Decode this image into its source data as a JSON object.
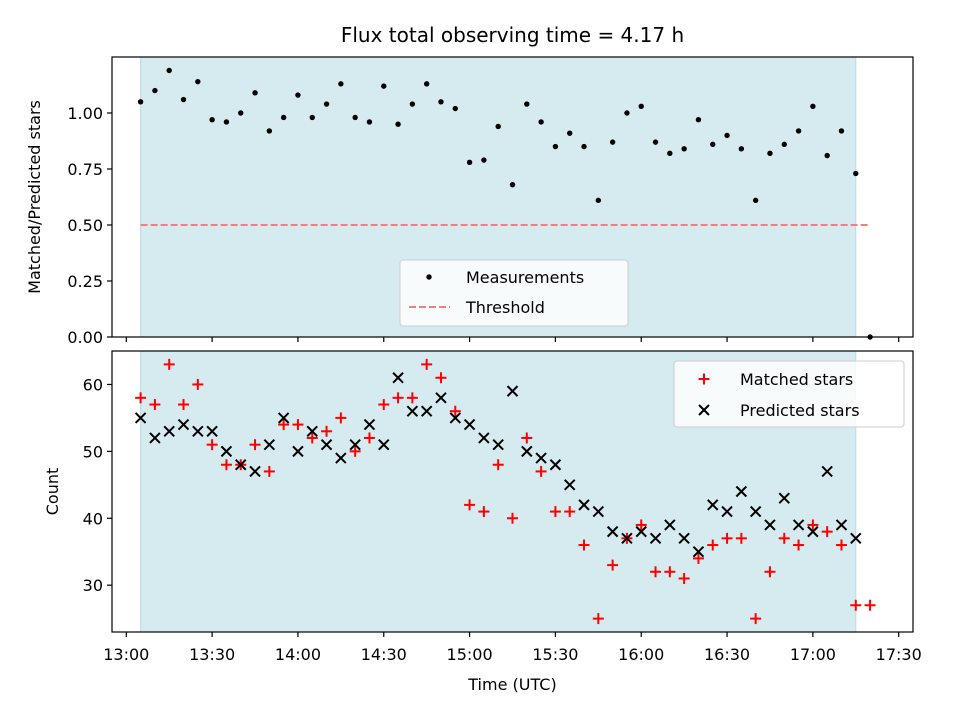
{
  "chart_data": [
    {
      "type": "scatter",
      "title": "Flux total observing time = 4.17 h",
      "xlabel": "",
      "ylabel": "Matched/Predicted stars",
      "ylim": [
        0.0,
        1.25
      ],
      "yticks": [
        "0.00",
        "0.25",
        "0.50",
        "0.75",
        "1.00"
      ],
      "ytick_values": [
        0.0,
        0.25,
        0.5,
        0.75,
        1.0
      ],
      "shaded_span": {
        "start": "13:05",
        "end": "17:15",
        "color": "#d5ebf0"
      },
      "threshold": {
        "value": 0.5,
        "from": "13:05",
        "to": "17:20",
        "color": "#f08080",
        "style": "dashed"
      },
      "legend": {
        "placement": "lower-center",
        "entries": [
          "Measurements",
          "Threshold"
        ]
      },
      "series": [
        {
          "name": "Measurements",
          "marker": "dot",
          "color": "#000000",
          "x": [
            "13:05",
            "13:10",
            "13:15",
            "13:20",
            "13:25",
            "13:30",
            "13:35",
            "13:40",
            "13:45",
            "13:50",
            "13:55",
            "14:00",
            "14:05",
            "14:10",
            "14:15",
            "14:20",
            "14:25",
            "14:30",
            "14:35",
            "14:40",
            "14:45",
            "14:50",
            "14:55",
            "15:00",
            "15:05",
            "15:10",
            "15:15",
            "15:20",
            "15:25",
            "15:30",
            "15:35",
            "15:40",
            "15:45",
            "15:50",
            "15:55",
            "16:00",
            "16:05",
            "16:10",
            "16:15",
            "16:20",
            "16:25",
            "16:30",
            "16:35",
            "16:40",
            "16:45",
            "16:50",
            "16:55",
            "17:00",
            "17:05",
            "17:10",
            "17:15",
            "17:20"
          ],
          "y": [
            1.05,
            1.1,
            1.19,
            1.06,
            1.14,
            0.97,
            0.96,
            1.0,
            1.09,
            0.92,
            0.98,
            1.08,
            0.98,
            1.04,
            1.13,
            0.98,
            0.96,
            1.12,
            0.95,
            1.04,
            1.13,
            1.05,
            1.02,
            0.78,
            0.79,
            0.94,
            0.68,
            1.04,
            0.96,
            0.85,
            0.91,
            0.85,
            0.61,
            0.87,
            1.0,
            1.03,
            0.87,
            0.82,
            0.84,
            0.97,
            0.86,
            0.9,
            0.84,
            0.61,
            0.82,
            0.86,
            0.92,
            1.03,
            0.81,
            0.92,
            0.73,
            0.0
          ]
        }
      ]
    },
    {
      "type": "scatter",
      "title": "",
      "xlabel": "Time (UTC)",
      "ylabel": "Count",
      "ylim": [
        23,
        65
      ],
      "yticks": [
        "30",
        "40",
        "50",
        "60"
      ],
      "ytick_values": [
        30,
        40,
        50,
        60
      ],
      "xticks": [
        "13:00",
        "13:30",
        "14:00",
        "14:30",
        "15:00",
        "15:30",
        "16:00",
        "16:30",
        "17:00",
        "17:30"
      ],
      "xlim": [
        "12:55",
        "17:35"
      ],
      "shaded_span": {
        "start": "13:05",
        "end": "17:15",
        "color": "#d5ebf0"
      },
      "legend": {
        "placement": "upper-right",
        "entries": [
          "Matched stars",
          "Predicted stars"
        ]
      },
      "series": [
        {
          "name": "Matched stars",
          "marker": "plus",
          "color": "#ff0000",
          "x": [
            "13:05",
            "13:10",
            "13:15",
            "13:20",
            "13:25",
            "13:30",
            "13:35",
            "13:40",
            "13:45",
            "13:50",
            "13:55",
            "14:00",
            "14:05",
            "14:10",
            "14:15",
            "14:20",
            "14:25",
            "14:30",
            "14:35",
            "14:40",
            "14:45",
            "14:50",
            "14:55",
            "15:00",
            "15:05",
            "15:10",
            "15:15",
            "15:20",
            "15:25",
            "15:30",
            "15:35",
            "15:40",
            "15:45",
            "15:50",
            "15:55",
            "16:00",
            "16:05",
            "16:10",
            "16:15",
            "16:20",
            "16:25",
            "16:30",
            "16:35",
            "16:40",
            "16:45",
            "16:50",
            "16:55",
            "17:00",
            "17:05",
            "17:10",
            "17:15",
            "17:20"
          ],
          "y": [
            58,
            57,
            63,
            57,
            60,
            51,
            48,
            48,
            51,
            47,
            54,
            54,
            52,
            53,
            55,
            50,
            52,
            57,
            58,
            58,
            63,
            61,
            56,
            42,
            41,
            48,
            40,
            52,
            47,
            41,
            41,
            36,
            25,
            33,
            37,
            39,
            32,
            32,
            31,
            34,
            36,
            37,
            37,
            25,
            32,
            37,
            36,
            39,
            38,
            36,
            27,
            27
          ]
        },
        {
          "name": "Predicted stars",
          "marker": "x",
          "color": "#000000",
          "x": [
            "13:05",
            "13:10",
            "13:15",
            "13:20",
            "13:25",
            "13:30",
            "13:35",
            "13:40",
            "13:45",
            "13:50",
            "13:55",
            "14:00",
            "14:05",
            "14:10",
            "14:15",
            "14:20",
            "14:25",
            "14:30",
            "14:35",
            "14:40",
            "14:45",
            "14:50",
            "14:55",
            "15:00",
            "15:05",
            "15:10",
            "15:15",
            "15:20",
            "15:25",
            "15:30",
            "15:35",
            "15:40",
            "15:45",
            "15:50",
            "15:55",
            "16:00",
            "16:05",
            "16:10",
            "16:15",
            "16:20",
            "16:25",
            "16:30",
            "16:35",
            "16:40",
            "16:45",
            "16:50",
            "16:55",
            "17:00",
            "17:05",
            "17:10",
            "17:15"
          ],
          "y": [
            55,
            52,
            53,
            54,
            53,
            53,
            50,
            48,
            47,
            51,
            55,
            50,
            53,
            51,
            49,
            51,
            54,
            51,
            61,
            56,
            56,
            58,
            55,
            54,
            52,
            51,
            59,
            50,
            49,
            48,
            45,
            42,
            41,
            38,
            37,
            38,
            37,
            39,
            37,
            35,
            42,
            41,
            44,
            41,
            39,
            43,
            39,
            38,
            47,
            39,
            37
          ]
        }
      ]
    }
  ]
}
